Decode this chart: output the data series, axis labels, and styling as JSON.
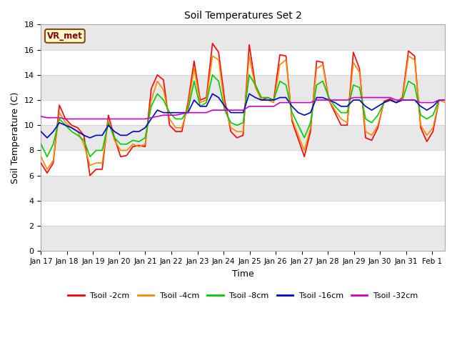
{
  "title": "Soil Temperatures Set 2",
  "xlabel": "Time",
  "ylabel": "Soil Temperature (C)",
  "xlim": [
    0,
    15.5
  ],
  "ylim": [
    0,
    18
  ],
  "yticks": [
    0,
    2,
    4,
    6,
    8,
    10,
    12,
    14,
    16,
    18
  ],
  "xtick_labels": [
    "Jan 17",
    "Jan 18",
    "Jan 19",
    "Jan 20",
    "Jan 21",
    "Jan 22",
    "Jan 23",
    "Jan 24",
    "Jan 25",
    "Jan 26",
    "Jan 27",
    "Jan 28",
    "Jan 29",
    "Jan 30",
    "Jan 31",
    "Feb 1"
  ],
  "annotation_text": "VR_met",
  "fig_bg": "#ffffff",
  "plot_bg": "#ffffff",
  "band_color1": "#ffffff",
  "band_color2": "#e8e8e8",
  "series": {
    "Tsoil -2cm": {
      "color": "#ff0000",
      "lw": 1.2
    },
    "Tsoil -4cm": {
      "color": "#ff8800",
      "lw": 1.2
    },
    "Tsoil -8cm": {
      "color": "#00cc00",
      "lw": 1.2
    },
    "Tsoil -16cm": {
      "color": "#0000cc",
      "lw": 1.2
    },
    "Tsoil -32cm": {
      "color": "#cc00cc",
      "lw": 1.2
    }
  },
  "t2cm": [
    7.0,
    6.2,
    7.0,
    11.6,
    10.5,
    10.0,
    9.8,
    9.2,
    6.0,
    6.5,
    6.5,
    10.8,
    9.0,
    7.5,
    7.6,
    8.3,
    8.4,
    8.3,
    12.9,
    14.0,
    13.6,
    10.0,
    9.5,
    9.5,
    11.8,
    15.1,
    12.0,
    12.2,
    16.5,
    15.8,
    12.0,
    9.5,
    9.0,
    9.2,
    16.4,
    13.2,
    12.0,
    12.2,
    12.0,
    15.6,
    15.5,
    10.3,
    8.9,
    7.5,
    9.5,
    15.1,
    15.0,
    12.0,
    11.0,
    10.0,
    10.0,
    15.8,
    14.5,
    9.0,
    8.8,
    9.8,
    11.9,
    12.1,
    11.8,
    12.2,
    15.9,
    15.5,
    9.8,
    8.7,
    9.5,
    12.0,
    12.0
  ],
  "t4cm": [
    7.5,
    6.5,
    7.2,
    11.0,
    10.2,
    9.8,
    9.5,
    8.5,
    6.8,
    7.0,
    7.0,
    10.5,
    8.8,
    8.0,
    8.0,
    8.5,
    8.3,
    8.5,
    12.0,
    13.5,
    12.8,
    10.5,
    9.8,
    9.8,
    11.5,
    14.5,
    11.8,
    12.0,
    15.5,
    15.2,
    11.5,
    9.8,
    9.5,
    9.5,
    15.5,
    13.0,
    12.0,
    12.0,
    11.8,
    14.8,
    15.2,
    10.5,
    9.2,
    8.0,
    9.8,
    14.5,
    14.8,
    12.0,
    11.2,
    10.5,
    10.2,
    15.0,
    14.2,
    9.5,
    9.2,
    10.0,
    11.8,
    12.0,
    11.8,
    12.0,
    15.5,
    15.2,
    10.0,
    9.2,
    9.8,
    12.0,
    11.8
  ],
  "t8cm": [
    8.5,
    7.5,
    8.5,
    10.5,
    10.0,
    9.5,
    9.2,
    8.8,
    7.5,
    8.0,
    8.0,
    10.2,
    9.0,
    8.5,
    8.5,
    8.8,
    8.7,
    9.0,
    11.5,
    12.5,
    12.0,
    11.0,
    10.5,
    10.5,
    11.2,
    13.5,
    11.5,
    11.8,
    14.0,
    13.5,
    11.2,
    10.2,
    10.0,
    10.2,
    14.0,
    13.2,
    12.2,
    12.2,
    12.0,
    13.5,
    13.2,
    11.0,
    10.0,
    9.0,
    10.2,
    13.2,
    13.5,
    12.2,
    11.5,
    11.0,
    11.0,
    13.2,
    13.0,
    10.5,
    10.2,
    10.8,
    11.8,
    12.0,
    11.8,
    12.0,
    13.5,
    13.2,
    10.8,
    10.5,
    10.8,
    12.0,
    12.0
  ],
  "t16cm": [
    9.5,
    9.0,
    9.5,
    10.2,
    10.0,
    9.8,
    9.5,
    9.2,
    9.0,
    9.2,
    9.2,
    10.0,
    9.5,
    9.2,
    9.2,
    9.5,
    9.5,
    9.8,
    10.5,
    11.2,
    11.0,
    11.0,
    11.0,
    11.0,
    11.0,
    12.0,
    11.5,
    11.5,
    12.5,
    12.2,
    11.5,
    11.0,
    11.0,
    11.0,
    12.5,
    12.2,
    12.0,
    12.0,
    12.0,
    12.2,
    12.2,
    11.5,
    11.0,
    10.8,
    11.0,
    12.2,
    12.2,
    12.0,
    11.8,
    11.5,
    11.5,
    12.0,
    12.0,
    11.5,
    11.2,
    11.5,
    11.8,
    12.0,
    11.8,
    12.0,
    12.0,
    12.0,
    11.5,
    11.2,
    11.5,
    12.0,
    12.0
  ],
  "t32cm": [
    10.7,
    10.6,
    10.6,
    10.6,
    10.5,
    10.5,
    10.5,
    10.5,
    10.5,
    10.5,
    10.5,
    10.5,
    10.5,
    10.5,
    10.5,
    10.5,
    10.5,
    10.5,
    10.6,
    10.7,
    10.8,
    10.8,
    10.8,
    10.9,
    11.0,
    11.0,
    11.0,
    11.0,
    11.2,
    11.2,
    11.2,
    11.2,
    11.2,
    11.2,
    11.5,
    11.5,
    11.5,
    11.5,
    11.5,
    11.8,
    11.8,
    11.8,
    11.8,
    11.8,
    11.8,
    12.0,
    12.0,
    12.0,
    12.0,
    12.0,
    12.0,
    12.2,
    12.2,
    12.2,
    12.2,
    12.2,
    12.2,
    12.2,
    12.0,
    12.0,
    12.0,
    12.0,
    11.8,
    11.8,
    11.8,
    12.0,
    12.0
  ]
}
